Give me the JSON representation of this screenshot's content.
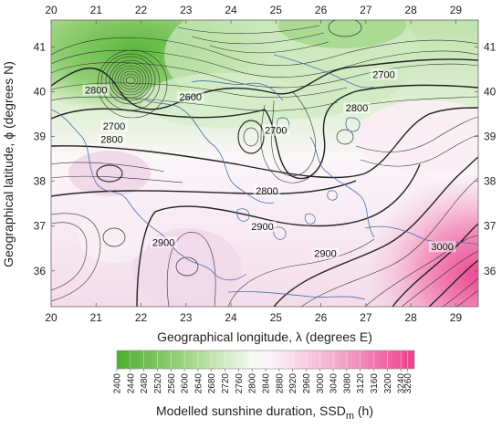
{
  "map": {
    "x_axis_title": "Geographical longitude, λ (degrees E)",
    "y_axis_title": "Geographical latitude, ϕ (degrees N)",
    "x_ticks": [
      "20",
      "21",
      "22",
      "23",
      "24",
      "25",
      "26",
      "27",
      "28",
      "29"
    ],
    "y_ticks": [
      "36",
      "37",
      "38",
      "39",
      "40",
      "41"
    ],
    "x_range": [
      20,
      29.5
    ],
    "y_range": [
      35.2,
      41.6
    ],
    "contour_labels": [
      {
        "text": "2600",
        "lon": 23.1,
        "lat": 39.85
      },
      {
        "text": "2700",
        "lon": 21.4,
        "lat": 39.2
      },
      {
        "text": "2800",
        "lon": 21.35,
        "lat": 38.9
      },
      {
        "text": "2800",
        "lon": 21.0,
        "lat": 40.0
      },
      {
        "text": "2700",
        "lon": 27.4,
        "lat": 40.35
      },
      {
        "text": "2800",
        "lon": 26.8,
        "lat": 39.6
      },
      {
        "text": "2700",
        "lon": 25.0,
        "lat": 39.1
      },
      {
        "text": "2800",
        "lon": 24.8,
        "lat": 37.75
      },
      {
        "text": "2900",
        "lon": 24.7,
        "lat": 36.95
      },
      {
        "text": "2900",
        "lon": 22.5,
        "lat": 36.6
      },
      {
        "text": "2900",
        "lon": 26.1,
        "lat": 36.35
      },
      {
        "text": "3000",
        "lon": 28.7,
        "lat": 36.5
      }
    ]
  },
  "colorbar": {
    "title_main": "Modelled sunshine duration, SSD",
    "title_sub": "m",
    "title_unit": " (h)",
    "ticks": [
      "2400",
      "2440",
      "2480",
      "2520",
      "2560",
      "2600",
      "2640",
      "2680",
      "2720",
      "2760",
      "2800",
      "2840",
      "2880",
      "2920",
      "2960",
      "3000",
      "3040",
      "3080",
      "3120",
      "3160",
      "3200",
      "3240",
      "3260"
    ],
    "colors": {
      "low": "#4caf2f",
      "mid": "#ffffff",
      "high": "#ee3f8e"
    }
  }
}
